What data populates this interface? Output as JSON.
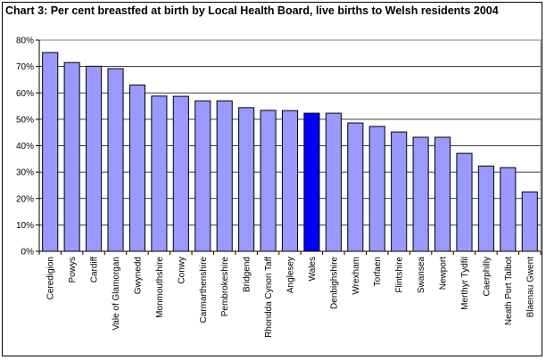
{
  "chart_data": {
    "type": "bar",
    "title": "Chart 3: Per cent breastfed at birth by Local Health Board, live births to Welsh residents 2004",
    "xlabel": "",
    "ylabel": "",
    "ylim": [
      0,
      80
    ],
    "ytick_labels": [
      "0%",
      "10%",
      "20%",
      "30%",
      "40%",
      "50%",
      "60%",
      "70%",
      "80%"
    ],
    "grid": true,
    "legend": "none",
    "colors": {
      "bar": "#9999ff",
      "highlight": "#0000ff",
      "edge": "#000000"
    },
    "highlight_category": "Wales",
    "categories": [
      "Ceredigion",
      "Powys",
      "Cardiff",
      "Vale of Glamorgan",
      "Gwynedd",
      "Monmouthshire",
      "Conwy",
      "Carmarthenshire",
      "Pembrokeshire",
      "Bridgend",
      "Rhondda Cynon Taff",
      "Anglesey",
      "Wales",
      "Denbighshire",
      "Wrexham",
      "Torfaen",
      "Flintshire",
      "Swansea",
      "Newport",
      "Merthyr Tydfil",
      "Caerphilly",
      "Neath Port Talbot",
      "Blaenau Gwent"
    ],
    "values": [
      75.3,
      71.5,
      70.1,
      69.2,
      63.0,
      58.8,
      58.7,
      57.0,
      57.0,
      54.4,
      53.4,
      53.3,
      52.3,
      52.3,
      48.6,
      47.3,
      45.2,
      43.2,
      43.2,
      37.1,
      32.3,
      31.7,
      22.5
    ]
  }
}
